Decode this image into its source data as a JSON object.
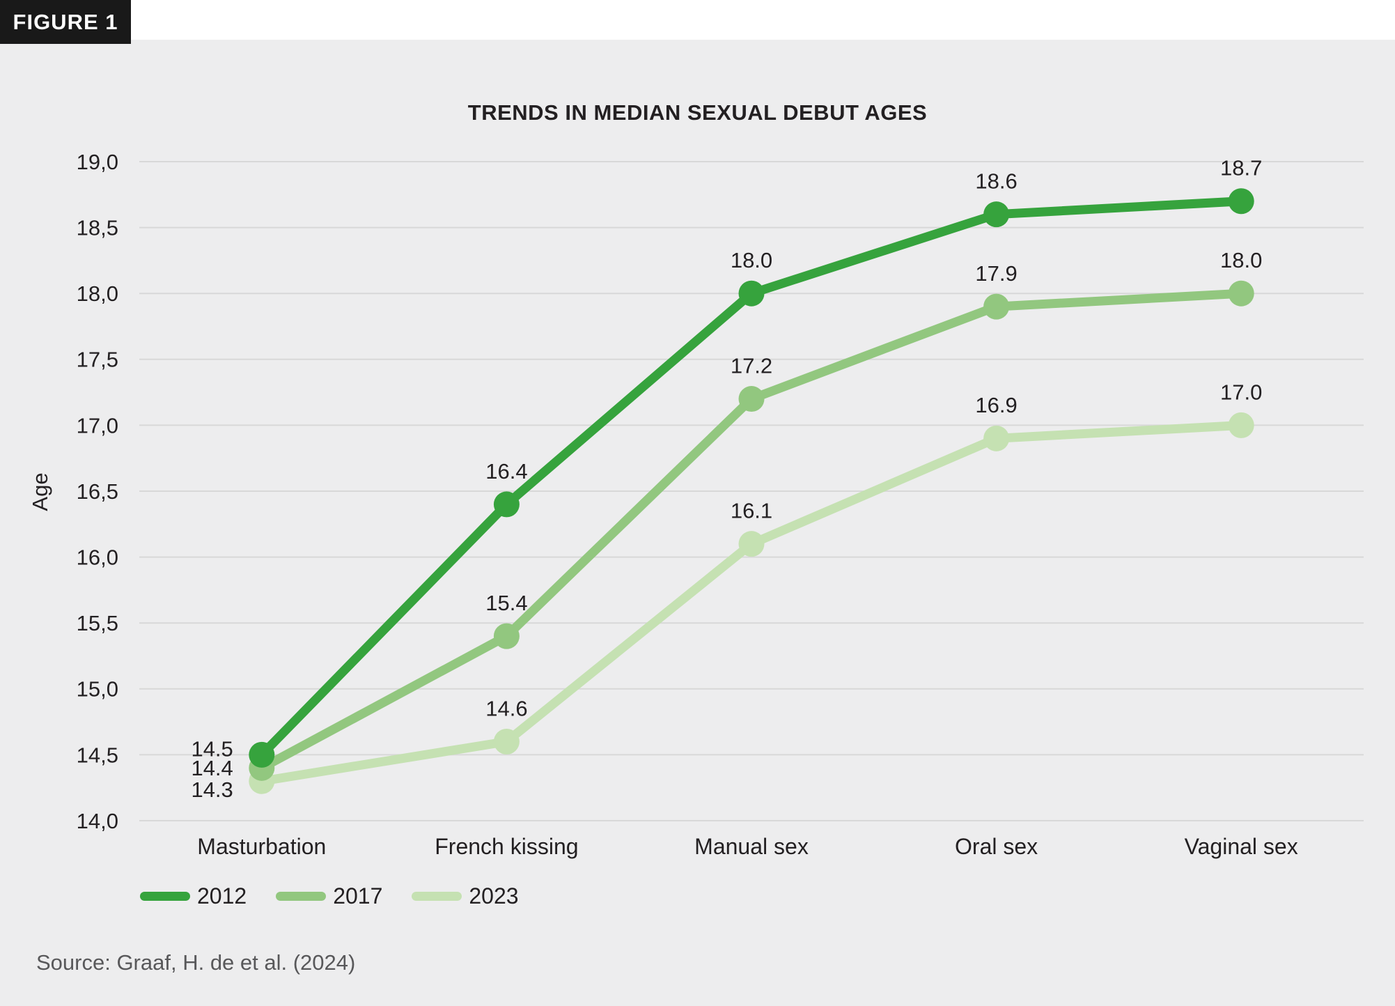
{
  "figure_label": "FIGURE 1",
  "title": "TRENDS IN MEDIAN SEXUAL DEBUT AGES",
  "source": "Source: Graaf, H. de et al. (2024)",
  "colors": {
    "background": "#ededee",
    "figure_box": "#191919",
    "gridline": "#d8d8d8",
    "text_dark": "#232022",
    "text_gray": "#58585a"
  },
  "chart_data": {
    "type": "line",
    "title": "TRENDS IN MEDIAN SEXUAL DEBUT AGES",
    "xlabel": "",
    "ylabel": "Age",
    "categories": [
      "Masturbation",
      "French kissing",
      "Manual sex",
      "Oral sex",
      "Vaginal sex"
    ],
    "series": [
      {
        "name": "2012",
        "color": "#36a33d",
        "values": [
          14.5,
          16.4,
          18.0,
          18.6,
          18.7
        ],
        "labels": [
          "14.5",
          "16.4",
          "18.0",
          "18.6",
          "18.7"
        ]
      },
      {
        "name": "2017",
        "color": "#92c77f",
        "values": [
          14.4,
          15.4,
          17.2,
          17.9,
          18.0
        ],
        "labels": [
          "14.4",
          "15.4",
          "17.2",
          "17.9",
          "18.0"
        ]
      },
      {
        "name": "2023",
        "color": "#c5e1b2",
        "values": [
          14.3,
          14.6,
          16.1,
          16.9,
          17.0
        ],
        "labels": [
          "14.3",
          "14.6",
          "16.1",
          "16.9",
          "17.0"
        ]
      }
    ],
    "ylim": [
      14.0,
      19.0
    ],
    "ytick_step": 0.5,
    "ytick_labels": [
      "19,0",
      "18,5",
      "18,0",
      "17,5",
      "17,0",
      "16,5",
      "16,0",
      "15,5",
      "15,0",
      "14,5",
      "14,0"
    ],
    "decimal_separator_axis": ",",
    "decimal_separator_labels": ".",
    "grid": true,
    "legend_position": "bottom-left"
  }
}
